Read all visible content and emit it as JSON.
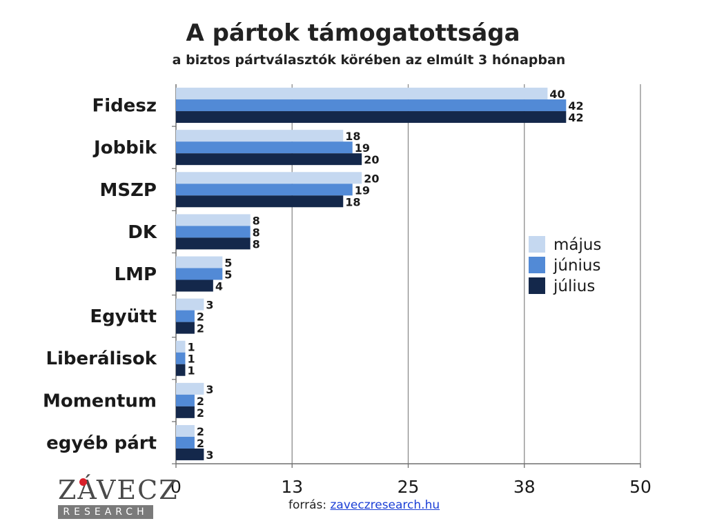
{
  "chart_data": {
    "type": "bar",
    "orientation": "horizontal",
    "title": "A pártok támogatottsága",
    "subtitle": "a biztos pártválasztók körében az elmúlt 3 hónapban",
    "categories": [
      "Fidesz",
      "Jobbik",
      "MSZP",
      "DK",
      "LMP",
      "Együtt",
      "Liberálisok",
      "Momentum",
      "egyéb párt"
    ],
    "series": [
      {
        "name": "május",
        "color": "#c5d8f0",
        "values": [
          40,
          18,
          20,
          8,
          5,
          3,
          1,
          3,
          2
        ]
      },
      {
        "name": "június",
        "color": "#528ad6",
        "values": [
          42,
          19,
          19,
          8,
          5,
          2,
          1,
          2,
          2
        ]
      },
      {
        "name": "július",
        "color": "#14284b",
        "values": [
          42,
          20,
          18,
          8,
          4,
          2,
          1,
          2,
          3
        ]
      }
    ],
    "xlim": [
      0,
      50
    ],
    "x_ticks": [
      "0",
      "13",
      "25",
      "38",
      "50"
    ],
    "grid": true,
    "legend_position": "right"
  },
  "source": {
    "label": "forrás:",
    "link_text": "zaveczresearch.hu"
  },
  "logo": {
    "word": "ZÁVECZ",
    "tagline": "RESEARCH"
  }
}
